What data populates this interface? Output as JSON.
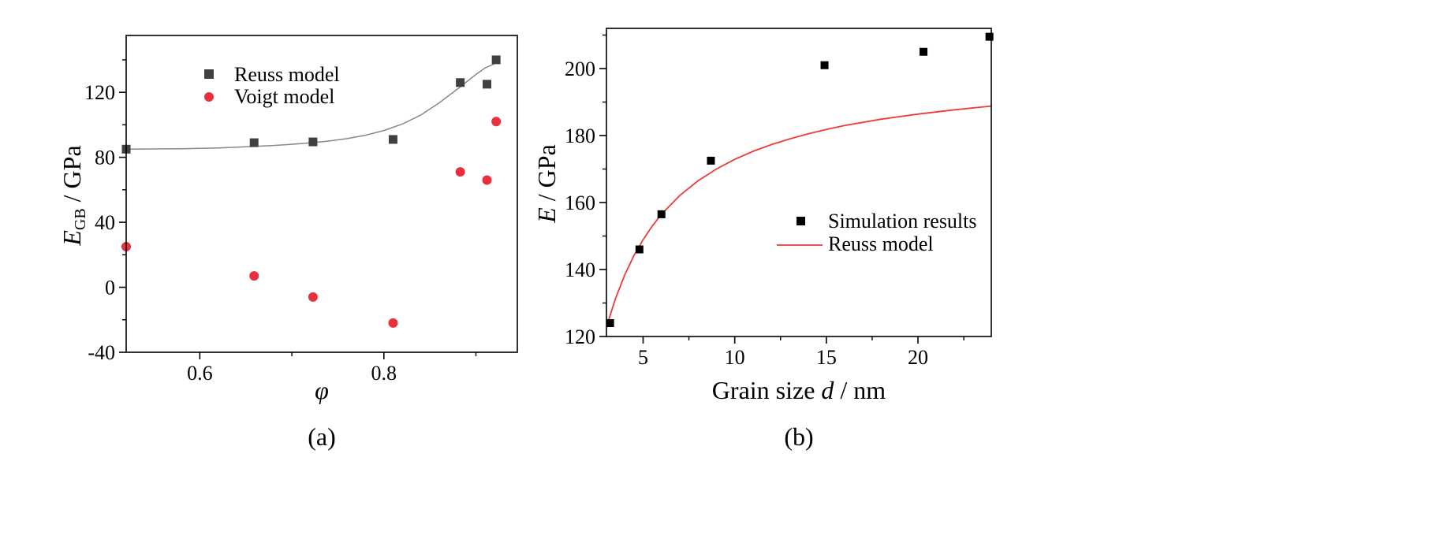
{
  "colors": {
    "reuss_square": "#404040",
    "voigt_circle": "#e8313c",
    "sim_square": "#000000",
    "reuss_fit_a": "#888888",
    "reuss_fit_b": "#ee3a3a"
  },
  "chart_data": [
    {
      "type": "scatter",
      "panel_label": "(a)",
      "xlabel": {
        "main": "φ"
      },
      "ylabel": {
        "main": "E",
        "sub": "GB",
        "rest": " / GPa"
      },
      "xlim": [
        0.52,
        0.945
      ],
      "ylim": [
        -40,
        155
      ],
      "xticks": [
        0.6,
        0.8
      ],
      "xtick_labels": [
        "0.6",
        "0.8"
      ],
      "xminor": [
        0.7,
        0.9
      ],
      "yticks": [
        -40,
        0,
        40,
        80,
        120
      ],
      "ytick_labels": [
        "-40",
        "0",
        "40",
        "80",
        "120"
      ],
      "yminor": [
        -20,
        20,
        60,
        100,
        140
      ],
      "legend_position": "top-left",
      "series": [
        {
          "name": "Reuss model",
          "marker": "square",
          "x": [
            0.52,
            0.659,
            0.723,
            0.81,
            0.883,
            0.912,
            0.922
          ],
          "y": [
            85,
            89,
            89.5,
            91,
            126,
            125,
            140
          ]
        },
        {
          "name": "Voigt model",
          "marker": "circle",
          "x": [
            0.52,
            0.659,
            0.723,
            0.81,
            0.883,
            0.912,
            0.922
          ],
          "y": [
            25,
            7,
            -6,
            -22,
            71,
            66,
            102
          ]
        }
      ],
      "fit": {
        "x": [
          0.52,
          0.54,
          0.56,
          0.58,
          0.6,
          0.62,
          0.64,
          0.66,
          0.68,
          0.7,
          0.72,
          0.74,
          0.76,
          0.78,
          0.8,
          0.82,
          0.84,
          0.86,
          0.88,
          0.9,
          0.91,
          0.922
        ],
        "y": [
          85,
          85.1,
          85.2,
          85.3,
          85.5,
          85.8,
          86.2,
          86.7,
          87.3,
          88,
          88.9,
          90,
          91.5,
          93.6,
          96.5,
          100.5,
          106,
          113.5,
          122,
          131,
          135,
          138
        ]
      }
    },
    {
      "type": "scatter",
      "panel_label": "(b)",
      "xlabel": {
        "pre": "Grain size ",
        "ital": "d",
        "post": " / nm"
      },
      "ylabel": {
        "main": "E",
        "rest": " / GPa"
      },
      "xlim": [
        3,
        24
      ],
      "ylim": [
        120,
        212
      ],
      "xticks": [
        5,
        10,
        15,
        20
      ],
      "xtick_labels": [
        "5",
        "10",
        "15",
        "20"
      ],
      "xminor": [
        7.5,
        12.5,
        17.5,
        22.5
      ],
      "yticks": [
        120,
        140,
        160,
        180,
        200
      ],
      "ytick_labels": [
        "120",
        "140",
        "160",
        "180",
        "200"
      ],
      "yminor": [
        130,
        150,
        170,
        190,
        210
      ],
      "legend_position": "center-right",
      "series": [
        {
          "name": "Simulation results",
          "marker": "square",
          "x": [
            3.2,
            4.8,
            6.0,
            8.7,
            14.9,
            20.3,
            23.9
          ],
          "y": [
            124,
            146,
            156.5,
            172.5,
            201,
            205,
            209.5
          ]
        }
      ],
      "fit": {
        "name": "Reuss model",
        "x": [
          3.1,
          3.5,
          4,
          4.5,
          5,
          5.5,
          6,
          7,
          8,
          9,
          10,
          11,
          12,
          13,
          14,
          15,
          16,
          18,
          20,
          22,
          24
        ],
        "y": [
          124.6,
          131.4,
          138.4,
          144.2,
          148.9,
          153,
          156.5,
          162.1,
          166.5,
          170,
          172.9,
          175.3,
          177.3,
          179,
          180.5,
          181.8,
          183,
          184.9,
          186.4,
          187.7,
          188.8
        ]
      }
    }
  ]
}
